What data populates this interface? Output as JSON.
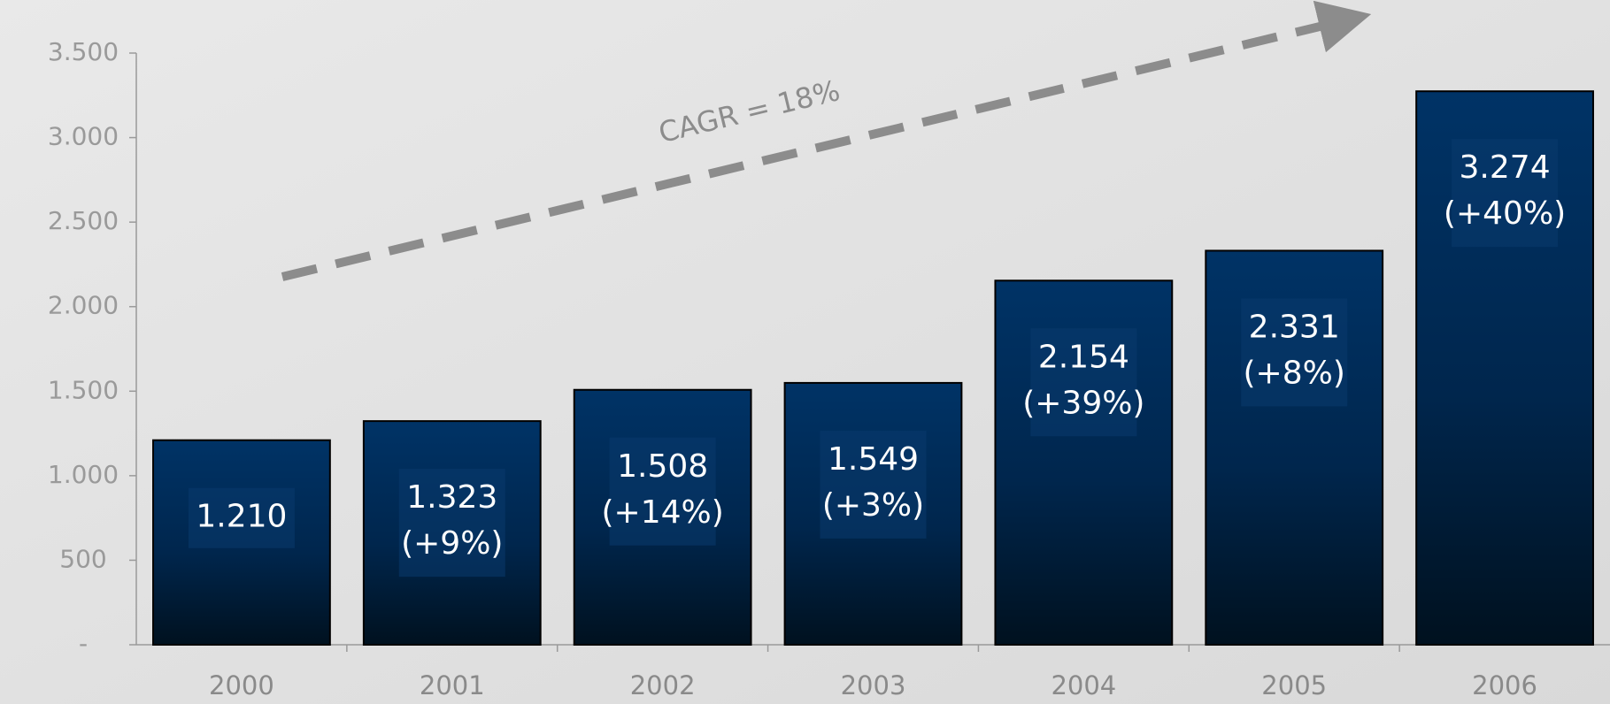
{
  "chart_data": {
    "type": "bar",
    "categories": [
      "2000",
      "2001",
      "2002",
      "2003",
      "2004",
      "2005",
      "2006"
    ],
    "values": [
      1210,
      1323,
      1508,
      1549,
      2154,
      2331,
      3274
    ],
    "value_labels": [
      "1.210",
      "1.323",
      "1.508",
      "1.549",
      "2.154",
      "2.331",
      "3.274"
    ],
    "change_labels": [
      null,
      "(+9%)",
      "(+14%)",
      "(+3%)",
      "(+39%)",
      "(+8%)",
      "(+40%)"
    ],
    "color": "#003366",
    "ylim": [
      0,
      3500
    ],
    "yticks": [
      {
        "value": 0,
        "label": "-"
      },
      500,
      {
        "value": 1000,
        "label": "1.000"
      },
      {
        "value": 1500,
        "label": "1.500"
      },
      {
        "value": 2000,
        "label": "2.000"
      },
      {
        "value": 2500,
        "label": "2.500"
      },
      {
        "value": 3000,
        "label": "3.000"
      },
      {
        "value": 3500,
        "label": "3.500"
      }
    ],
    "annotation": "CAGR = 18%",
    "grid": false
  }
}
